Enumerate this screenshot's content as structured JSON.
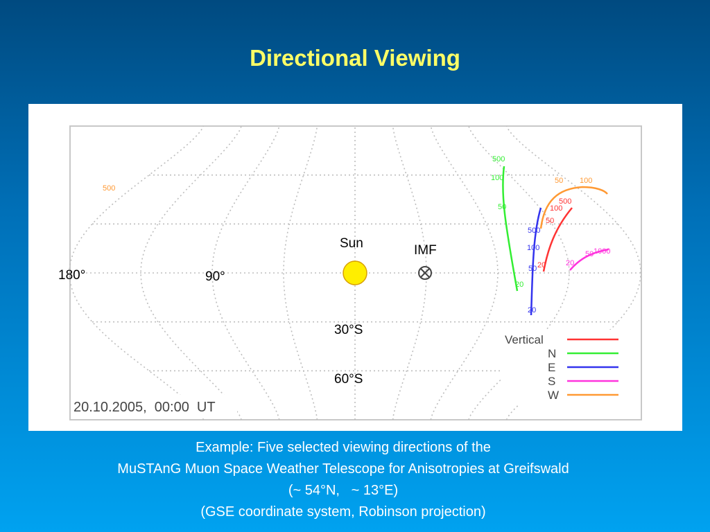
{
  "title": "Directional Viewing",
  "map": {
    "labels": {
      "sun": "Sun",
      "imf": "IMF",
      "lon180": "180°",
      "lon90": "90°",
      "lat30": "30°S",
      "lat60": "60°S",
      "timestamp": "20.10.2005,  00:00  UT"
    },
    "curves": [
      {
        "name": "Vertical",
        "color": "#ff3333",
        "labels": [
          "500",
          "100",
          "50",
          "20"
        ]
      },
      {
        "name": "N",
        "color": "#33ee33",
        "labels": [
          "500",
          "100",
          "50",
          "20"
        ]
      },
      {
        "name": "E",
        "color": "#3333ee",
        "labels": [
          "500",
          "100",
          "50",
          "20"
        ]
      },
      {
        "name": "S",
        "color": "#ff33dd",
        "labels": [
          "20",
          "50",
          "1000"
        ]
      },
      {
        "name": "W",
        "color": "#ff9933",
        "labels": [
          "500",
          "50",
          "100"
        ]
      }
    ]
  },
  "caption": [
    "Example: Five selected viewing directions of the",
    "MuSTAnG Muon Space Weather Telescope for Anisotropies at Greifswald",
    "(~ 54°N,   ~ 13°E)",
    "(GSE coordinate system, Robinson projection)"
  ]
}
